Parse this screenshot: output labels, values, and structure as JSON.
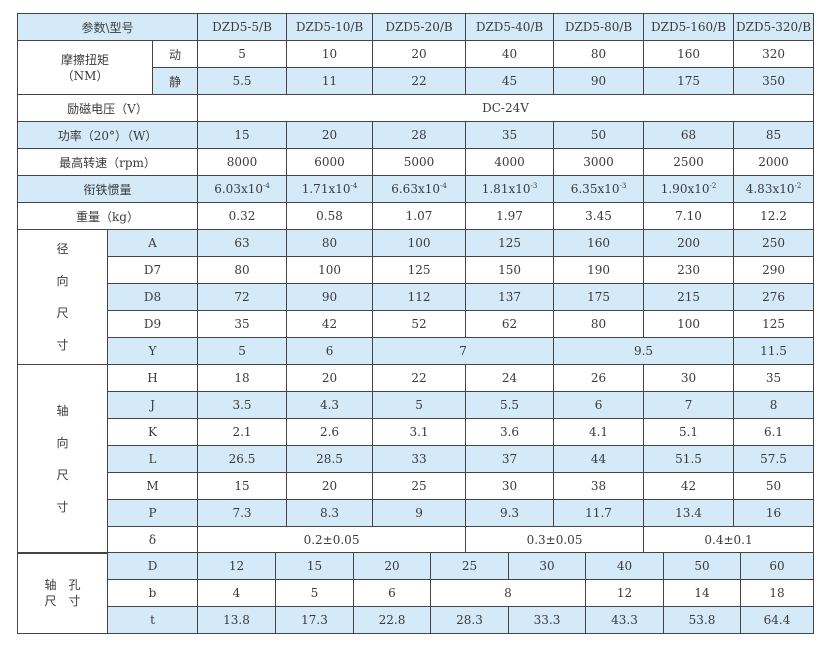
{
  "header": {
    "label": "参数\\型号",
    "models": [
      "DZD5-5/B",
      "DZD5-10/B",
      "DZD5-20/B",
      "DZD5-40/B",
      "DZD5-80/B",
      "DZD5-160/B",
      "DZD5-320/B"
    ]
  },
  "torque": {
    "label": "摩擦扭矩\n（NM）",
    "dyn_label": "动",
    "dyn": [
      "5",
      "10",
      "20",
      "40",
      "80",
      "160",
      "320"
    ],
    "stat_label": "静",
    "stat": [
      "5.5",
      "11",
      "22",
      "45",
      "90",
      "175",
      "350"
    ]
  },
  "voltage": {
    "label": "励磁电压（V）",
    "value": "DC-24V"
  },
  "power": {
    "label": "功率（20°）（W）",
    "values": [
      "15",
      "20",
      "28",
      "35",
      "50",
      "68",
      "85"
    ]
  },
  "speed": {
    "label": "最高转速（rpm）",
    "values": [
      "8000",
      "6000",
      "5000",
      "4000",
      "3000",
      "2500",
      "2000"
    ]
  },
  "inertia": {
    "label": "衔铁惯量",
    "mantissa": [
      "6.03x10",
      "1.71x10",
      "6.63x10",
      "1.81x10",
      "6.35x10",
      "1.90x10",
      "4.83x10"
    ],
    "exponent": [
      "-4",
      "-4",
      "-4",
      "-3",
      "-3",
      "-2",
      "-2"
    ]
  },
  "weight": {
    "label": "重量（kg）",
    "values": [
      "0.32",
      "0.58",
      "1.07",
      "1.97",
      "3.45",
      "7.10",
      "12.2"
    ]
  },
  "radial": {
    "label": "径\n\n向\n\n尺\n\n寸",
    "rows": [
      {
        "name": "A",
        "values": [
          "63",
          "80",
          "100",
          "125",
          "160",
          "200",
          "250"
        ]
      },
      {
        "name": "D7",
        "values": [
          "80",
          "100",
          "125",
          "150",
          "190",
          "230",
          "290"
        ]
      },
      {
        "name": "D8",
        "values": [
          "72",
          "90",
          "112",
          "137",
          "175",
          "215",
          "276"
        ]
      },
      {
        "name": "D9",
        "values": [
          "35",
          "42",
          "52",
          "62",
          "80",
          "100",
          "125"
        ]
      },
      {
        "name": "Y",
        "values": [
          "5",
          "6",
          "7",
          "9.5",
          "11.5"
        ]
      }
    ]
  },
  "axial": {
    "label": "轴\n\n向\n\n尺\n\n寸",
    "rows": [
      {
        "name": "H",
        "values": [
          "18",
          "20",
          "22",
          "24",
          "26",
          "30",
          "35"
        ]
      },
      {
        "name": "J",
        "values": [
          "3.5",
          "4.3",
          "5",
          "5.5",
          "6",
          "7",
          "8"
        ]
      },
      {
        "name": "K",
        "values": [
          "2.1",
          "2.6",
          "3.1",
          "3.6",
          "4.1",
          "5.1",
          "6.1"
        ]
      },
      {
        "name": "L",
        "values": [
          "26.5",
          "28.5",
          "33",
          "37",
          "44",
          "51.5",
          "57.5"
        ]
      },
      {
        "name": "M",
        "values": [
          "15",
          "20",
          "25",
          "30",
          "38",
          "42",
          "50"
        ]
      },
      {
        "name": "P",
        "values": [
          "7.3",
          "8.3",
          "9",
          "9.3",
          "11.7",
          "13.4",
          "16"
        ]
      },
      {
        "name": "δ",
        "values": [
          "0.2±0.05",
          "0.3±0.05",
          "0.4±0.1"
        ]
      }
    ]
  },
  "bore": {
    "label": "轴　孔\n尺　寸",
    "rows": [
      {
        "name": "D",
        "values": [
          "12",
          "15",
          "20",
          "25",
          "30",
          "40",
          "50",
          "60"
        ]
      },
      {
        "name": "b",
        "values": [
          "4",
          "5",
          "6",
          "8",
          "12",
          "14",
          "18"
        ]
      },
      {
        "name": "t",
        "values": [
          "13.8",
          "17.3",
          "22.8",
          "28.3",
          "33.3",
          "43.3",
          "53.8",
          "64.4"
        ]
      }
    ]
  },
  "colors": {
    "shade": "#d5eaf8",
    "border": "#444444"
  }
}
